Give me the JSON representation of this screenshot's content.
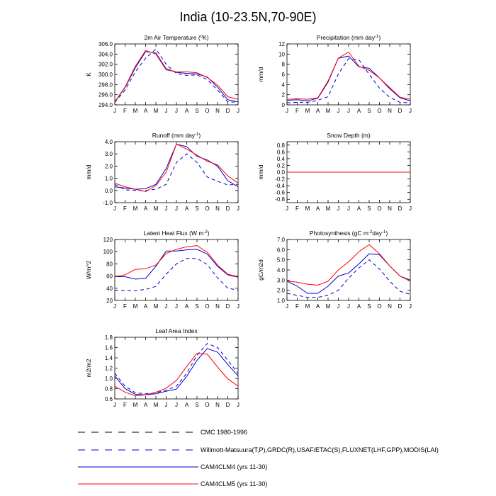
{
  "figure": {
    "title": "India (10-23.5N,70-90E)",
    "colors": {
      "cmc": "#000000",
      "obs": "#0000cc",
      "clm4": "#0000cc",
      "clm5": "#ff0000"
    }
  },
  "chart_data": [
    {
      "type": "line",
      "title": "2m Air Temperature (",
      "title_sup": "o",
      "title_end": "K)",
      "ylabel": "K",
      "ylim": [
        294.0,
        306.0
      ],
      "yticks": [
        294.0,
        296.0,
        298.0,
        300.0,
        302.0,
        304.0,
        306.0
      ],
      "yticklabels": [
        "294.0",
        "296.0",
        "298.0",
        "300.0",
        "302.0",
        "304.0",
        "306.0"
      ],
      "x": [
        "J",
        "F",
        "M",
        "A",
        "M",
        "J",
        "J",
        "A",
        "S",
        "O",
        "N",
        "D",
        "J"
      ],
      "series": [
        {
          "name": "Willmott-Matsuura",
          "values": [
            294.5,
            296.9,
            300.5,
            303.2,
            305.0,
            302.0,
            300.2,
            299.8,
            299.9,
            299.0,
            296.9,
            294.6,
            294.5
          ]
        },
        {
          "name": "CAM4CLM4",
          "values": [
            294.6,
            297.4,
            301.3,
            304.5,
            304.2,
            301.1,
            300.4,
            300.2,
            300.1,
            299.5,
            297.5,
            295.0,
            294.6
          ]
        },
        {
          "name": "CAM4CLM5",
          "values": [
            294.6,
            297.5,
            301.6,
            304.7,
            304.0,
            300.9,
            300.5,
            300.5,
            300.3,
            299.4,
            297.9,
            295.6,
            295.1
          ]
        }
      ]
    },
    {
      "type": "line",
      "title": "Precipitation (mm day",
      "title_sup": "-1",
      "title_end": ")",
      "ylabel": "mm/d",
      "ylim": [
        0,
        12
      ],
      "yticks": [
        0,
        2,
        4,
        6,
        8,
        10,
        12
      ],
      "yticklabels": [
        "0",
        "2",
        "4",
        "6",
        "8",
        "10",
        "12"
      ],
      "x": [
        "J",
        "F",
        "M",
        "A",
        "M",
        "J",
        "J",
        "A",
        "S",
        "O",
        "N",
        "D",
        "J"
      ],
      "series": [
        {
          "name": "Willmott-Matsuura",
          "values": [
            0.4,
            0.5,
            0.5,
            0.9,
            1.6,
            6.1,
            9.1,
            8.9,
            6.0,
            3.3,
            1.5,
            0.5,
            0.4
          ]
        },
        {
          "name": "CAM4CLM4",
          "values": [
            0.9,
            1.0,
            0.8,
            1.3,
            4.5,
            9.2,
            9.6,
            7.5,
            7.2,
            5.3,
            3.2,
            1.4,
            0.8
          ]
        },
        {
          "name": "CAM4CLM5",
          "values": [
            1.1,
            1.2,
            1.1,
            1.4,
            4.7,
            9.2,
            10.4,
            7.6,
            6.8,
            5.3,
            3.4,
            1.5,
            1.1
          ]
        }
      ]
    },
    {
      "type": "line",
      "title": "Runoff (mm day",
      "title_sup": "-1",
      "title_end": ")",
      "ylabel": "mm/d",
      "ylim": [
        -1.0,
        4.0
      ],
      "yticks": [
        -1.0,
        0.0,
        1.0,
        2.0,
        3.0,
        4.0
      ],
      "yticklabels": [
        "-1.0",
        "0.0",
        "1.0",
        "2.0",
        "3.0",
        "4.0"
      ],
      "x": [
        "J",
        "F",
        "M",
        "A",
        "M",
        "J",
        "J",
        "A",
        "S",
        "O",
        "N",
        "D",
        "J"
      ],
      "series": [
        {
          "name": "GRDC",
          "values": [
            0.5,
            0.05,
            0.0,
            0.0,
            0.1,
            0.5,
            2.3,
            3.0,
            2.3,
            1.1,
            0.75,
            0.45,
            0.5
          ]
        },
        {
          "name": "CAM4CLM4",
          "values": [
            0.3,
            0.2,
            0.1,
            0.15,
            0.5,
            1.8,
            3.8,
            3.6,
            2.8,
            2.5,
            2.0,
            0.8,
            0.3
          ]
        },
        {
          "name": "CAM4CLM5",
          "values": [
            0.6,
            0.3,
            0.1,
            -0.1,
            0.4,
            1.5,
            3.8,
            3.4,
            2.9,
            2.4,
            2.1,
            1.2,
            0.6
          ]
        }
      ]
    },
    {
      "type": "line",
      "title": "Snow Depth (m)",
      "title_sup": "",
      "title_end": "",
      "ylabel": "mm/d",
      "ylim": [
        -0.9,
        0.9
      ],
      "yticks": [
        -0.8,
        -0.6,
        -0.4,
        -0.2,
        0.0,
        0.2,
        0.4,
        0.6,
        0.8
      ],
      "yticklabels": [
        "-0.8",
        "-0.6",
        "-0.4",
        "-0.2",
        "0.0",
        "0.2",
        "0.4",
        "0.6",
        "0.8"
      ],
      "x": [
        "J",
        "F",
        "M",
        "A",
        "M",
        "J",
        "J",
        "A",
        "S",
        "O",
        "N",
        "D",
        "J"
      ],
      "series": [
        {
          "name": "USAF/ETAC",
          "values": [
            0,
            0,
            0,
            0,
            0,
            0,
            0,
            0,
            0,
            0,
            0,
            0,
            0
          ]
        },
        {
          "name": "CAM4CLM4",
          "values": [
            0,
            0,
            0,
            0,
            0,
            0,
            0,
            0,
            0,
            0,
            0,
            0,
            0
          ]
        },
        {
          "name": "CAM4CLM5",
          "values": [
            0,
            0,
            0,
            0,
            0,
            0,
            0,
            0,
            0,
            0,
            0,
            0,
            0
          ]
        }
      ]
    },
    {
      "type": "line",
      "title": "Latent Heat Flux (W m",
      "title_sup": "-2",
      "title_end": ")",
      "ylabel": "W/m^2",
      "ylim": [
        20,
        120
      ],
      "yticks": [
        20,
        40,
        60,
        80,
        100,
        120
      ],
      "yticklabels": [
        "20",
        "40",
        "60",
        "80",
        "100",
        "120"
      ],
      "x": [
        "J",
        "F",
        "M",
        "A",
        "M",
        "J",
        "J",
        "A",
        "S",
        "O",
        "N",
        "D",
        "J"
      ],
      "series": [
        {
          "name": "FLUXNET",
          "values": [
            37,
            36,
            36,
            38,
            43,
            63,
            80,
            89,
            89,
            79,
            57,
            40,
            37
          ]
        },
        {
          "name": "CAM4CLM4",
          "values": [
            59,
            59,
            55,
            56,
            76,
            101,
            101,
            103,
            104,
            96,
            76,
            62,
            58
          ]
        },
        {
          "name": "CAM4CLM5",
          "values": [
            59,
            62,
            71,
            72,
            78,
            97,
            104,
            108,
            110,
            99,
            78,
            63,
            59
          ]
        }
      ]
    },
    {
      "type": "line",
      "title": "Photosynthesis (gC m",
      "title_sup": "-2",
      "title_end": "day",
      "title_sup2": "-1",
      "title_end2": ")",
      "ylabel": "gC/m2d",
      "ylim": [
        1.0,
        7.0
      ],
      "yticks": [
        1.0,
        2.0,
        3.0,
        4.0,
        5.0,
        6.0,
        7.0
      ],
      "yticklabels": [
        "1.0",
        "2.0",
        "3.0",
        "4.0",
        "5.0",
        "6.0",
        "7.0"
      ],
      "x": [
        "J",
        "F",
        "M",
        "A",
        "M",
        "J",
        "J",
        "A",
        "S",
        "O",
        "N",
        "D",
        "J"
      ],
      "series": [
        {
          "name": "FLUXNET",
          "values": [
            1.7,
            1.5,
            1.3,
            1.3,
            1.5,
            2.0,
            3.2,
            4.2,
            5.0,
            4.1,
            2.9,
            1.9,
            1.6
          ]
        },
        {
          "name": "CAM4CLM4",
          "values": [
            2.9,
            2.4,
            1.7,
            1.7,
            2.4,
            3.4,
            3.7,
            4.6,
            5.6,
            5.5,
            4.4,
            3.4,
            3.0
          ]
        },
        {
          "name": "CAM4CLM5",
          "values": [
            2.9,
            2.8,
            2.6,
            2.5,
            2.9,
            4.0,
            4.8,
            5.8,
            6.5,
            5.6,
            4.4,
            3.4,
            2.9
          ]
        }
      ]
    },
    {
      "type": "line",
      "title": "Leaf Area Index",
      "title_sup": "",
      "title_end": "",
      "ylabel": "m2/m2",
      "ylim": [
        0.6,
        1.8
      ],
      "yticks": [
        0.6,
        0.8,
        1.0,
        1.2,
        1.4,
        1.6,
        1.8
      ],
      "yticklabels": [
        "0.6",
        "0.8",
        "1.0",
        "1.2",
        "1.4",
        "1.6",
        "1.8"
      ],
      "x": [
        "J",
        "F",
        "M",
        "A",
        "M",
        "J",
        "J",
        "A",
        "S",
        "O",
        "N",
        "D",
        "J"
      ],
      "series": [
        {
          "name": "MODIS",
          "values": [
            1.1,
            0.85,
            0.72,
            0.7,
            0.72,
            0.77,
            0.85,
            1.1,
            1.45,
            1.68,
            1.6,
            1.35,
            1.1
          ]
        },
        {
          "name": "CAM4CLM4",
          "values": [
            1.05,
            0.8,
            0.69,
            0.68,
            0.7,
            0.75,
            0.79,
            1.04,
            1.35,
            1.58,
            1.51,
            1.27,
            1.05
          ]
        },
        {
          "name": "CAM4CLM5",
          "values": [
            0.85,
            0.73,
            0.66,
            0.68,
            0.73,
            0.81,
            0.96,
            1.23,
            1.49,
            1.47,
            1.22,
            0.99,
            0.85
          ]
        }
      ]
    }
  ],
  "legend": [
    {
      "label": "CMC 1980-1996",
      "style": "longdash",
      "color": "#000000"
    },
    {
      "label": "Willmott-Matsuura(T,P),GRDC(R),USAF/ETAC(S),FLUXNET(LHF,GPP),MODIS(LAI)",
      "style": "dash",
      "color": "#0000cc"
    },
    {
      "label": "CAM4CLM4 (yrs 11-30)",
      "style": "solid",
      "color": "#0000cc"
    },
    {
      "label": "CAM4CLM5 (yrs 11-30)",
      "style": "solid",
      "color": "#ff0000"
    }
  ]
}
